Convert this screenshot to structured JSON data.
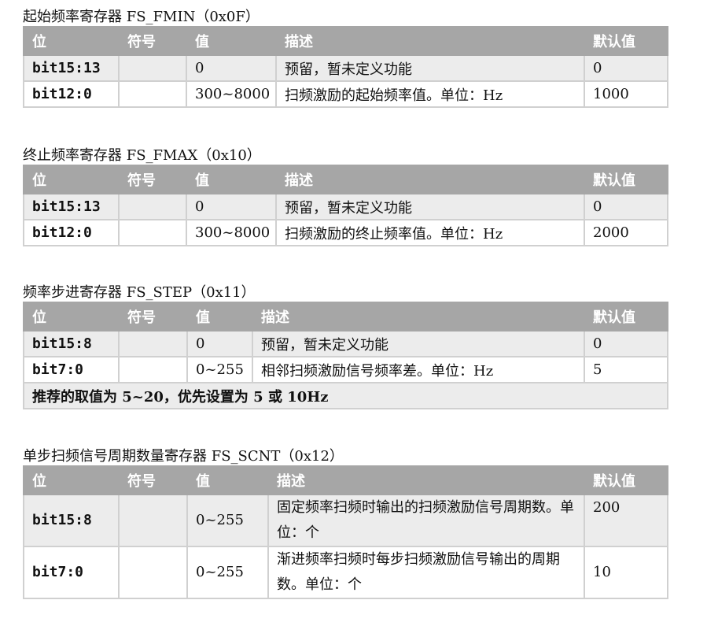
{
  "headers": {
    "bit": "位",
    "symbol": "符号",
    "value": "值",
    "desc": "描述",
    "default": "默认值"
  },
  "sections": [
    {
      "title": "起始频率寄存器 FS_FMIN（0x0F）",
      "rows": [
        {
          "bit": "bit15:13",
          "symbol": "",
          "value": "0",
          "desc": "预留，暂未定义功能",
          "default": "0"
        },
        {
          "bit": "bit12:0",
          "symbol": "",
          "value": "300~8000",
          "desc": "扫频激励的起始频率值。单位：Hz",
          "default": "1000"
        }
      ]
    },
    {
      "title": "终止频率寄存器 FS_FMAX（0x10）",
      "rows": [
        {
          "bit": "bit15:13",
          "symbol": "",
          "value": "0",
          "desc": "预留，暂未定义功能",
          "default": "0"
        },
        {
          "bit": "bit12:0",
          "symbol": "",
          "value": "300~8000",
          "desc": "扫频激励的终止频率值。单位：Hz",
          "default": "2000"
        }
      ]
    },
    {
      "title": "频率步进寄存器 FS_STEP（0x11）",
      "rows": [
        {
          "bit": "bit15:8",
          "symbol": "",
          "value": "0",
          "desc": "预留，暂未定义功能",
          "default": "0"
        },
        {
          "bit": "bit7:0",
          "symbol": "",
          "value": "0~255",
          "desc": "相邻扫频激励信号频率差。单位：Hz",
          "default": "5"
        }
      ],
      "note": "推荐的取值为 5~20，优先设置为 5 或 10Hz"
    },
    {
      "title": "单步扫频信号周期数量寄存器 FS_SCNT（0x12）",
      "rows": [
        {
          "bit": "bit15:8",
          "symbol": "",
          "value": "0~255",
          "desc": "固定频率扫频时输出的扫频激励信号周期数。单位：个",
          "default": "200"
        },
        {
          "bit": "bit7:0",
          "symbol": "",
          "value": "0~255",
          "desc": "渐进频率扫频时每步扫频激励信号输出的周期数。单位：个",
          "default": "10"
        }
      ]
    }
  ]
}
